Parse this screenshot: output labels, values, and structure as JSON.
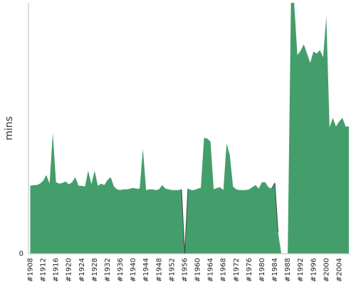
{
  "chart_data": {
    "type": "area",
    "title": "",
    "xlabel": "",
    "ylabel": "mins",
    "y_tick_labels": [
      "0"
    ],
    "ylim": [
      0,
      351
    ],
    "grid": false,
    "x_tick_labels": [
      "#1908",
      "#1912",
      "#1916",
      "#1920",
      "#1924",
      "#1928",
      "#1932",
      "#1936",
      "#1940",
      "#1944",
      "#1948",
      "#1952",
      "#1956",
      "#1960",
      "#1964",
      "#1968",
      "#1972",
      "#1976",
      "#1980",
      "#1984",
      "#1988",
      "#1992",
      "#1996",
      "#2000",
      "#2004"
    ],
    "x": [
      1908,
      1909,
      1910,
      1911,
      1912,
      1913,
      1914,
      1915,
      1916,
      1917,
      1918,
      1919,
      1920,
      1921,
      1922,
      1923,
      1924,
      1925,
      1926,
      1927,
      1928,
      1929,
      1930,
      1931,
      1932,
      1933,
      1934,
      1935,
      1936,
      1937,
      1938,
      1939,
      1940,
      1941,
      1942,
      1943,
      1944,
      1945,
      1946,
      1947,
      1948,
      1949,
      1950,
      1951,
      1952,
      1953,
      1954,
      1955,
      1956,
      1957,
      1958,
      1959,
      1960,
      1961,
      1962,
      1963,
      1964,
      1965,
      1966,
      1967,
      1968,
      1969,
      1970,
      1971,
      1972,
      1973,
      1974,
      1975,
      1976,
      1977,
      1978,
      1979,
      1980,
      1981,
      1982,
      1983,
      1984,
      1985,
      1986,
      1987,
      1988,
      1989,
      1990,
      1991,
      1992,
      1993,
      1994,
      1995,
      1996,
      1997,
      1998,
      1999,
      2000,
      2001,
      2002,
      2003,
      2004,
      2005,
      2006,
      2007
    ],
    "series": [
      {
        "color": "#449e6c",
        "values": [
          95,
          96,
          96,
          98,
          102,
          110,
          98,
          169,
          100,
          98,
          99,
          101,
          97,
          100,
          107,
          95,
          95,
          94,
          116,
          97,
          116,
          95,
          98,
          96,
          103,
          107,
          94,
          90,
          89,
          90,
          90,
          91,
          92,
          91,
          91,
          147,
          89,
          90,
          90,
          89,
          90,
          96,
          91,
          90,
          89,
          89,
          89,
          90,
          0,
          91,
          89,
          89,
          91,
          92,
          162,
          161,
          157,
          90,
          92,
          93,
          89,
          154,
          138,
          94,
          90,
          89,
          89,
          89,
          90,
          93,
          96,
          91,
          100,
          100,
          93,
          91,
          99,
          30,
          0,
          0,
          0,
          351,
          351,
          278,
          284,
          293,
          280,
          267,
          283,
          280,
          285,
          275,
          332,
          177,
          190,
          178,
          185,
          190,
          178,
          178
        ]
      }
    ],
    "fill_drop_segments": [
      [
        1955,
        1956
      ],
      [
        1956,
        1957
      ],
      [
        1983,
        1984
      ],
      [
        1984,
        1985
      ],
      [
        1987,
        1988
      ]
    ]
  }
}
